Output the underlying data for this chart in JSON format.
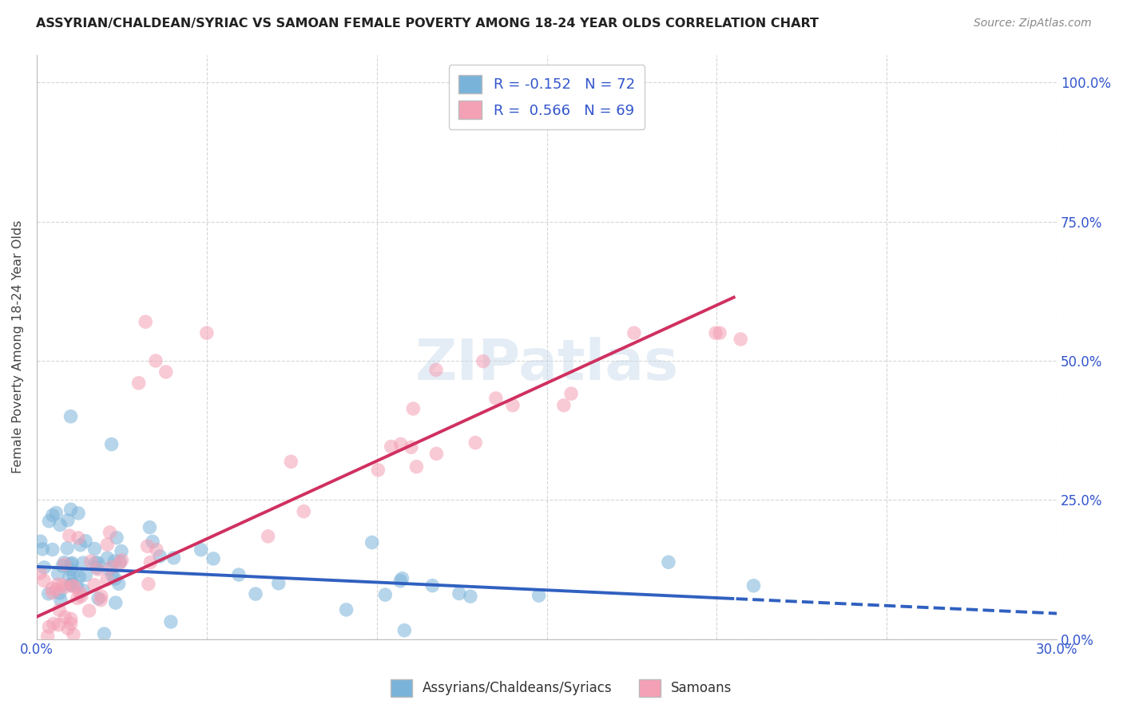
{
  "title": "ASSYRIAN/CHALDEAN/SYRIAC VS SAMOAN FEMALE POVERTY AMONG 18-24 YEAR OLDS CORRELATION CHART",
  "source": "Source: ZipAtlas.com",
  "ylabel": "Female Poverty Among 18-24 Year Olds",
  "ytick_labels": [
    "0.0%",
    "25.0%",
    "50.0%",
    "75.0%",
    "100.0%"
  ],
  "ytick_positions": [
    0.0,
    0.25,
    0.5,
    0.75,
    1.0
  ],
  "xlim": [
    0.0,
    0.3
  ],
  "ylim": [
    0.0,
    1.05
  ],
  "blue_R": -0.152,
  "blue_N": 72,
  "pink_R": 0.566,
  "pink_N": 69,
  "blue_color": "#7ab3d9",
  "pink_color": "#f4a0b5",
  "blue_line_color": "#3060c0",
  "pink_line_color": "#d03060",
  "watermark_text": "ZIPatlas",
  "background_color": "#ffffff",
  "grid_color": "#cccccc",
  "legend_label_blue": "R = -0.152   N = 72",
  "legend_label_pink": "R =  0.566   N = 69",
  "bottom_legend_blue": "Assyrians/Chaldeans/Syriacs",
  "bottom_legend_pink": "Samoans",
  "blue_line_intercept": 0.13,
  "blue_line_slope": -0.28,
  "blue_line_solid_end": 0.205,
  "pink_line_intercept": 0.04,
  "pink_line_slope": 2.8,
  "pink_line_end": 0.205
}
